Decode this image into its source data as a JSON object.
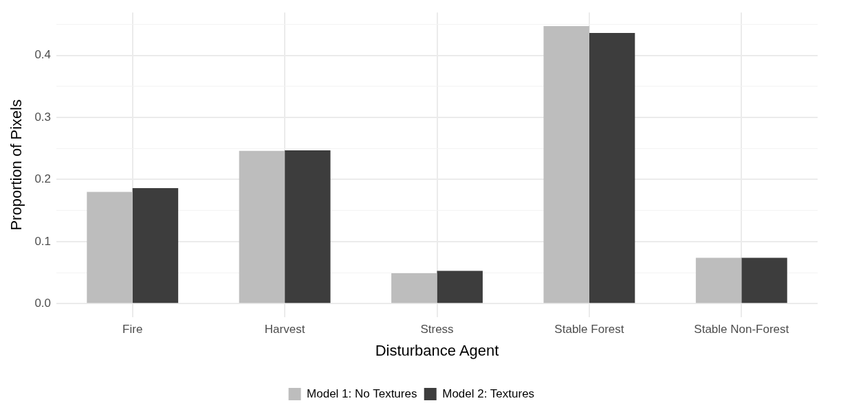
{
  "chart_data": {
    "type": "bar",
    "xlabel": "Disturbance Agent",
    "ylabel": "Proportion of Pixels",
    "categories": [
      "Fire",
      "Harvest",
      "Stress",
      "Stable Forest",
      "Stable Non-Forest"
    ],
    "series": [
      {
        "name": "Model 1: No Textures",
        "color": "#bdbdbd",
        "values": [
          0.18,
          0.246,
          0.049,
          0.447,
          0.074
        ]
      },
      {
        "name": "Model 2: Textures",
        "color": "#3d3d3d",
        "values": [
          0.186,
          0.247,
          0.053,
          0.436,
          0.074
        ]
      }
    ],
    "ylim": [
      -0.022,
      0.469
    ],
    "yticks": [
      {
        "value": 0,
        "label": "0.0"
      },
      {
        "value": 0.05,
        "label": null
      },
      {
        "value": 0.1,
        "label": "0.1"
      },
      {
        "value": 0.15,
        "label": null
      },
      {
        "value": 0.2,
        "label": "0.2"
      },
      {
        "value": 0.25,
        "label": null
      },
      {
        "value": 0.3,
        "label": "0.3"
      },
      {
        "value": 0.35,
        "label": null
      },
      {
        "value": 0.4,
        "label": "0.4"
      },
      {
        "value": 0.45,
        "label": null
      }
    ],
    "grid": true,
    "legend": "bottom"
  }
}
